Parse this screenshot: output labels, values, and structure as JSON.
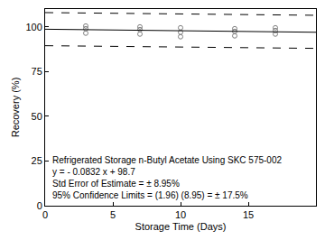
{
  "chart_data": {
    "type": "scatter",
    "x_label": "Storage Time (Days)",
    "y_label": "Recovery (%)",
    "annotation": [
      "Refrigerated Storage n-Butyl Acetate Using SKC 575-002",
      "y = - 0.0832 x + 98.7",
      "Std Error of Estimate = ± 8.95%",
      "95% Confidence Limits = (1.96) (8.95) = ± 17.5%"
    ],
    "xlim": [
      0,
      20
    ],
    "xticks": [
      0,
      5,
      10,
      15
    ],
    "ylim": [
      0,
      110
    ],
    "yticks": [
      0,
      25,
      50,
      75,
      100
    ],
    "grid": false,
    "series": [
      {
        "type": "scatter",
        "marker": "open_circle",
        "color": "#808080",
        "x": [
          3,
          3,
          3,
          7,
          7,
          7,
          10,
          10,
          10,
          14,
          14,
          14,
          17,
          17,
          17
        ],
        "values": [
          100.5,
          99,
          96.5,
          100,
          98.5,
          96,
          99.5,
          97,
          94.5,
          99,
          97.5,
          95,
          99.5,
          98,
          96
        ]
      },
      {
        "type": "line",
        "line_style": "solid",
        "color": "#000000",
        "x": [
          0,
          20
        ],
        "values": [
          98.7,
          97.0
        ]
      },
      {
        "type": "line",
        "line_style": "dash",
        "color": "#000000",
        "x": [
          0,
          20
        ],
        "values": [
          108,
          106.5
        ]
      },
      {
        "type": "line",
        "line_style": "dash",
        "color": "#000000",
        "x": [
          0,
          20
        ],
        "values": [
          89.5,
          88
        ]
      }
    ]
  }
}
